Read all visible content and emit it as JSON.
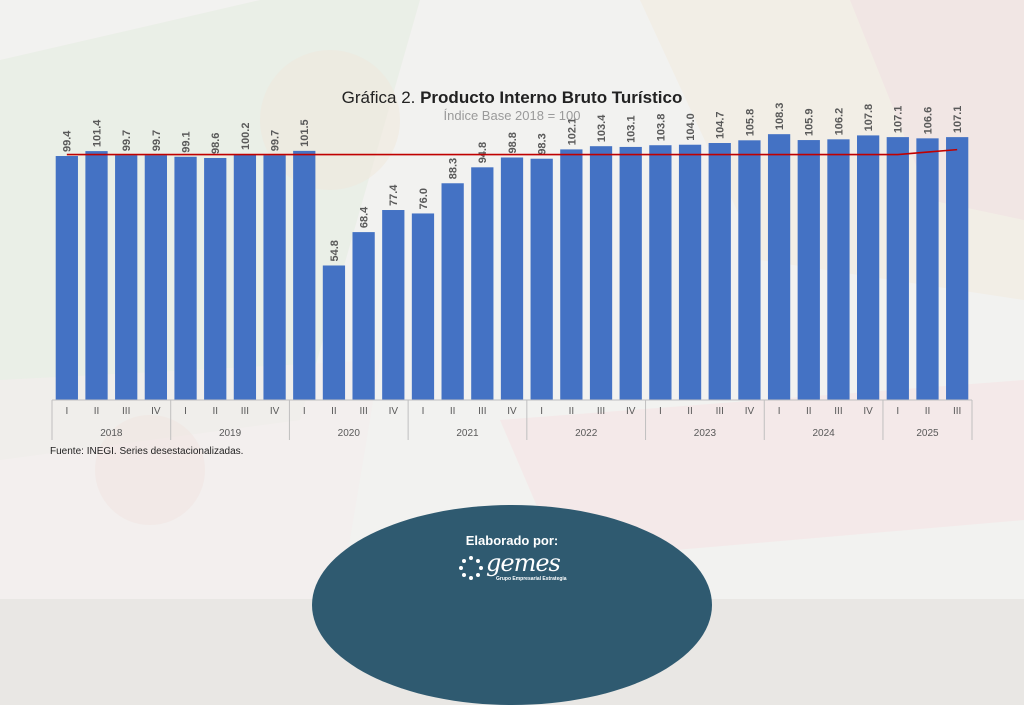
{
  "title": {
    "prefix": "Gráfica 2. ",
    "main": "Producto Interno Bruto Turístico"
  },
  "subtitle": "Índice Base 2018 = 100",
  "source": "Fuente: INEGI. Series desestacionalizadas.",
  "footer": {
    "label": "Elaborado por:",
    "logo_text": "gemes",
    "logo_tagline": "Grupo Empresarial Estrategia"
  },
  "colors": {
    "bar": "#4472c4",
    "line": "#c00000",
    "footer": "#2f5a70"
  },
  "chart_data": {
    "type": "bar",
    "categories": [
      "I",
      "II",
      "III",
      "IV",
      "I",
      "II",
      "III",
      "IV",
      "I",
      "II",
      "III",
      "IV",
      "I",
      "II",
      "III",
      "IV",
      "I",
      "II",
      "III",
      "IV",
      "I",
      "II",
      "III",
      "IV",
      "I",
      "II",
      "III",
      "IV",
      "I",
      "II",
      "III"
    ],
    "groups": [
      {
        "label": "2018",
        "count": 4
      },
      {
        "label": "2019",
        "count": 4
      },
      {
        "label": "2020",
        "count": 4
      },
      {
        "label": "2021",
        "count": 4
      },
      {
        "label": "2022",
        "count": 4
      },
      {
        "label": "2023",
        "count": 4
      },
      {
        "label": "2024",
        "count": 4
      },
      {
        "label": "2025",
        "count": 3
      }
    ],
    "values": [
      99.4,
      101.4,
      99.7,
      99.7,
      99.1,
      98.6,
      100.2,
      99.7,
      101.5,
      54.8,
      68.4,
      77.4,
      76.0,
      88.3,
      94.8,
      98.8,
      98.3,
      102.1,
      103.4,
      103.1,
      103.8,
      104.0,
      104.7,
      105.8,
      108.3,
      105.9,
      106.2,
      107.8,
      107.1,
      106.6,
      107.1
    ],
    "labels": [
      "99.4",
      "101.4",
      "99.7",
      "99.7",
      "99.1",
      "98.6",
      "100.2",
      "99.7",
      "101.5",
      "54.8",
      "68.4",
      "77.4",
      "76.0",
      "88.3",
      "94.8",
      "98.8",
      "98.3",
      "102.1",
      "103.4",
      "103.1",
      "103.8",
      "104.0",
      "104.7",
      "105.8",
      "108.3",
      "105.9",
      "106.2",
      "107.8",
      "107.1",
      "106.6",
      "107.1"
    ],
    "reference_line": [
      100,
      100,
      100,
      100,
      100,
      100,
      100,
      100,
      100,
      100,
      100,
      100,
      100,
      100,
      100,
      100,
      100,
      100,
      100,
      100,
      100,
      100,
      100,
      100,
      100,
      100,
      100,
      100,
      100,
      101,
      102
    ],
    "ylim": [
      0,
      110
    ],
    "grid": false,
    "legend": "none"
  }
}
